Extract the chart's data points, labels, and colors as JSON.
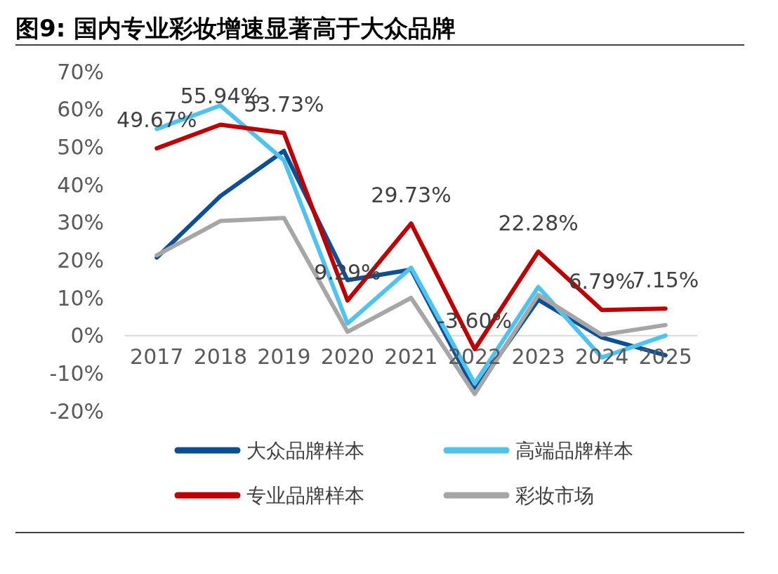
{
  "chart_data": {
    "type": "line",
    "title": "图9:  国内专业彩妆增速显著高于大众品牌",
    "categories": [
      "2017",
      "2018",
      "2019",
      "2020",
      "2021",
      "2022",
      "2023",
      "2024",
      "2025"
    ],
    "series": [
      {
        "name": "大众品牌样本",
        "color": "#0b4f96",
        "values": [
          20.7,
          37,
          49,
          14.7,
          17.5,
          -14.5,
          9.5,
          -0.5,
          -5.2
        ]
      },
      {
        "name": "高端品牌样本",
        "color": "#4fc3f0",
        "values": [
          54.8,
          61,
          46.5,
          3.2,
          18,
          -12.7,
          12.9,
          -5.8,
          0
        ]
      },
      {
        "name": "专业品牌样本",
        "color": "#c00000",
        "values": [
          49.67,
          55.94,
          53.73,
          9.29,
          29.73,
          -3.6,
          22.28,
          6.79,
          7.15
        ],
        "value_labels": [
          "49.67%",
          "55.94%",
          "53.73%",
          "9.29%",
          "29.73%",
          "-3.60%",
          "22.28%",
          "6.79%",
          "7.15%"
        ]
      },
      {
        "name": "彩妆市场",
        "color": "#a6a6a6",
        "values": [
          21.3,
          30.4,
          31.2,
          1,
          10,
          -15.5,
          10.8,
          0.2,
          2.8
        ]
      }
    ],
    "ylim": [
      -20,
      70
    ],
    "yticks": [
      {
        "value": -20,
        "label": "-20%"
      },
      {
        "value": -10,
        "label": "-10%"
      },
      {
        "value": 0,
        "label": "0%"
      },
      {
        "value": 10,
        "label": "10%"
      },
      {
        "value": 20,
        "label": "20%"
      },
      {
        "value": 30,
        "label": "30%"
      },
      {
        "value": 40,
        "label": "40%"
      },
      {
        "value": 50,
        "label": "50%"
      },
      {
        "value": 60,
        "label": "60%"
      },
      {
        "value": 70,
        "label": "70%"
      }
    ],
    "grid": false,
    "legend": "bottom",
    "marker": "none",
    "line_style": "solid"
  }
}
